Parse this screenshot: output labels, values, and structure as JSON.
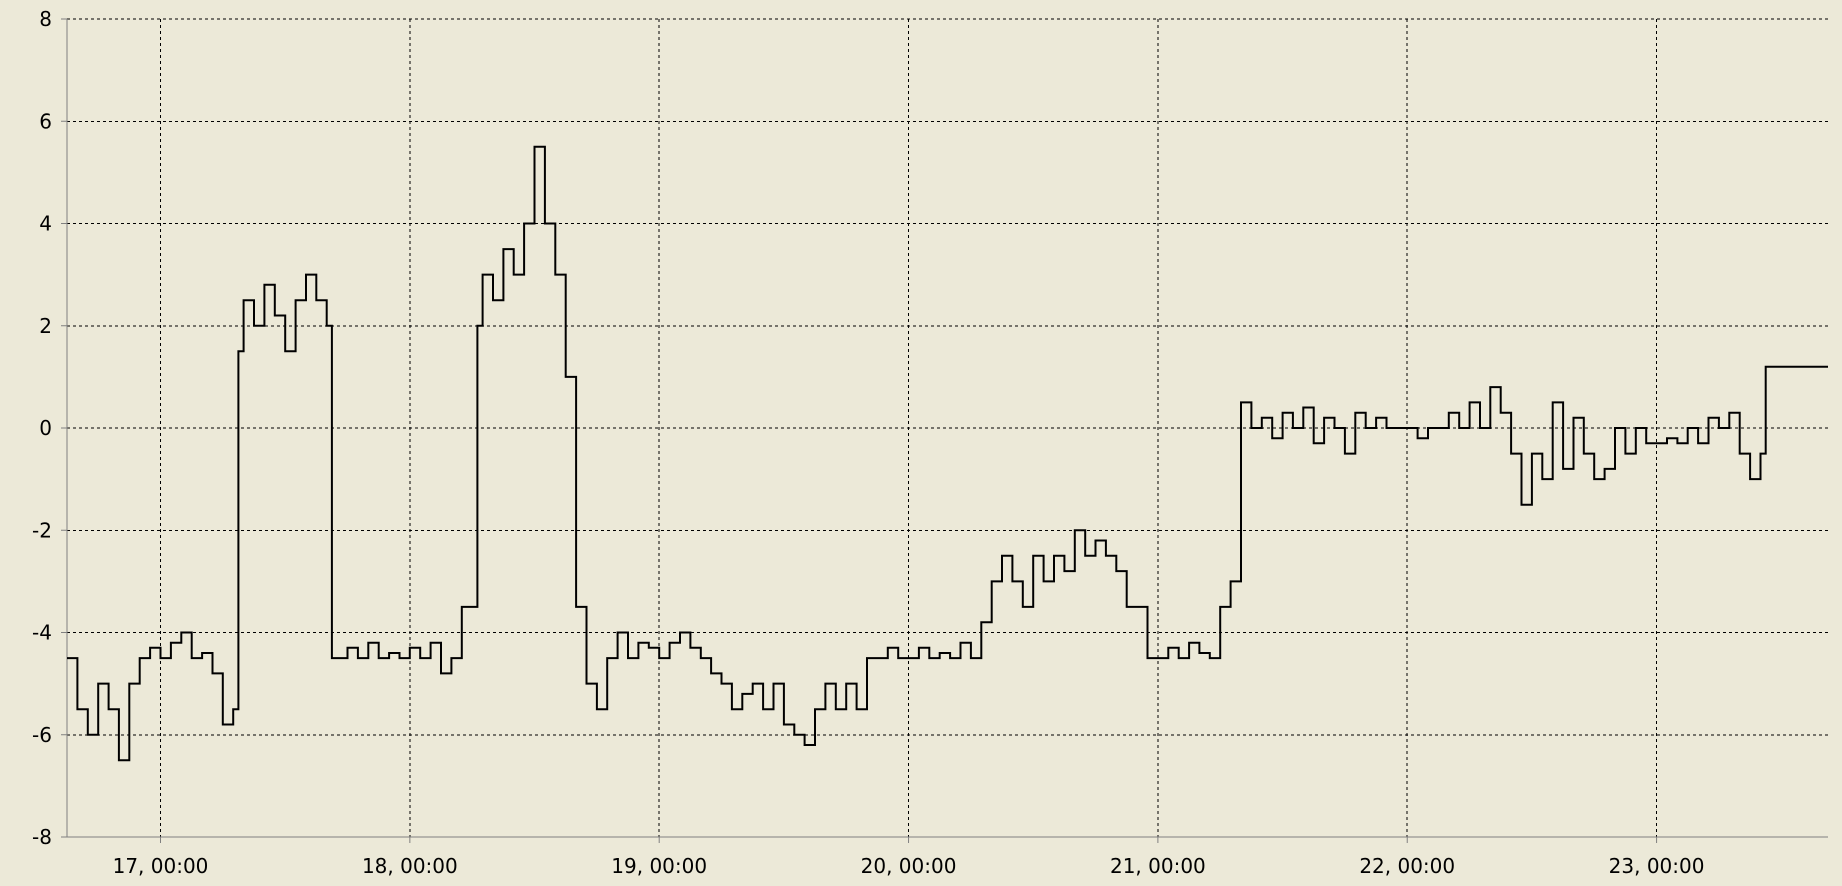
{
  "chart_data": {
    "type": "line",
    "title": "",
    "xlabel": "",
    "ylabel": "",
    "grid": true,
    "legend": "none",
    "colors": {
      "background": "#ece9d8",
      "line": "#000000",
      "grid": "#000000",
      "axis": "#808080"
    },
    "xlim": [
      "16, 15:00",
      "23, 16:30"
    ],
    "ylim": [
      -8,
      8
    ],
    "xticks": [
      "17, 00:00",
      "18, 00:00",
      "19, 00:00",
      "20, 00:00",
      "21, 00:00",
      "22, 00:00",
      "23, 00:00"
    ],
    "yticks": [
      -8,
      -6,
      -4,
      -2,
      0,
      2,
      4,
      6,
      8
    ],
    "series": [
      {
        "points": [
          [
            "16, 15:00",
            -4.5
          ],
          [
            "16, 16:00",
            -5.5
          ],
          [
            "16, 17:00",
            -6.0
          ],
          [
            "16, 18:00",
            -5.0
          ],
          [
            "16, 19:00",
            -5.5
          ],
          [
            "16, 20:00",
            -6.5
          ],
          [
            "16, 21:00",
            -5.0
          ],
          [
            "16, 22:00",
            -4.5
          ],
          [
            "16, 23:00",
            -4.3
          ],
          [
            "17, 00:00",
            -4.5
          ],
          [
            "17, 01:00",
            -4.2
          ],
          [
            "17, 02:00",
            -4.0
          ],
          [
            "17, 03:00",
            -4.5
          ],
          [
            "17, 04:00",
            -4.4
          ],
          [
            "17, 05:00",
            -4.8
          ],
          [
            "17, 06:00",
            -5.8
          ],
          [
            "17, 07:00",
            -5.5
          ],
          [
            "17, 07:30",
            1.5
          ],
          [
            "17, 08:00",
            2.5
          ],
          [
            "17, 09:00",
            2.0
          ],
          [
            "17, 10:00",
            2.8
          ],
          [
            "17, 11:00",
            2.2
          ],
          [
            "17, 12:00",
            1.5
          ],
          [
            "17, 13:00",
            2.5
          ],
          [
            "17, 14:00",
            3.0
          ],
          [
            "17, 15:00",
            2.5
          ],
          [
            "17, 16:00",
            2.0
          ],
          [
            "17, 16:30",
            -4.5
          ],
          [
            "17, 17:00",
            -4.5
          ],
          [
            "17, 18:00",
            -4.3
          ],
          [
            "17, 19:00",
            -4.5
          ],
          [
            "17, 20:00",
            -4.2
          ],
          [
            "17, 21:00",
            -4.5
          ],
          [
            "17, 22:00",
            -4.4
          ],
          [
            "17, 23:00",
            -4.5
          ],
          [
            "18, 00:00",
            -4.3
          ],
          [
            "18, 01:00",
            -4.5
          ],
          [
            "18, 02:00",
            -4.2
          ],
          [
            "18, 03:00",
            -4.8
          ],
          [
            "18, 04:00",
            -4.5
          ],
          [
            "18, 05:00",
            -3.5
          ],
          [
            "18, 06:00",
            -3.5
          ],
          [
            "18, 06:30",
            2.0
          ],
          [
            "18, 07:00",
            3.0
          ],
          [
            "18, 08:00",
            2.5
          ],
          [
            "18, 09:00",
            3.5
          ],
          [
            "18, 10:00",
            3.0
          ],
          [
            "18, 11:00",
            4.0
          ],
          [
            "18, 12:00",
            5.5
          ],
          [
            "18, 13:00",
            4.0
          ],
          [
            "18, 14:00",
            3.0
          ],
          [
            "18, 15:00",
            1.0
          ],
          [
            "18, 16:00",
            -3.5
          ],
          [
            "18, 17:00",
            -5.0
          ],
          [
            "18, 18:00",
            -5.5
          ],
          [
            "18, 19:00",
            -4.5
          ],
          [
            "18, 20:00",
            -4.0
          ],
          [
            "18, 21:00",
            -4.5
          ],
          [
            "18, 22:00",
            -4.2
          ],
          [
            "18, 23:00",
            -4.3
          ],
          [
            "19, 00:00",
            -4.5
          ],
          [
            "19, 01:00",
            -4.2
          ],
          [
            "19, 02:00",
            -4.0
          ],
          [
            "19, 03:00",
            -4.3
          ],
          [
            "19, 04:00",
            -4.5
          ],
          [
            "19, 05:00",
            -4.8
          ],
          [
            "19, 06:00",
            -5.0
          ],
          [
            "19, 07:00",
            -5.5
          ],
          [
            "19, 08:00",
            -5.2
          ],
          [
            "19, 09:00",
            -5.0
          ],
          [
            "19, 10:00",
            -5.5
          ],
          [
            "19, 11:00",
            -5.0
          ],
          [
            "19, 12:00",
            -5.8
          ],
          [
            "19, 13:00",
            -6.0
          ],
          [
            "19, 14:00",
            -6.2
          ],
          [
            "19, 15:00",
            -5.5
          ],
          [
            "19, 16:00",
            -5.0
          ],
          [
            "19, 17:00",
            -5.5
          ],
          [
            "19, 18:00",
            -5.0
          ],
          [
            "19, 19:00",
            -5.5
          ],
          [
            "19, 20:00",
            -4.5
          ],
          [
            "19, 21:00",
            -4.5
          ],
          [
            "19, 22:00",
            -4.3
          ],
          [
            "19, 23:00",
            -4.5
          ],
          [
            "20, 00:00",
            -4.5
          ],
          [
            "20, 01:00",
            -4.3
          ],
          [
            "20, 02:00",
            -4.5
          ],
          [
            "20, 03:00",
            -4.4
          ],
          [
            "20, 04:00",
            -4.5
          ],
          [
            "20, 05:00",
            -4.2
          ],
          [
            "20, 06:00",
            -4.5
          ],
          [
            "20, 07:00",
            -3.8
          ],
          [
            "20, 08:00",
            -3.0
          ],
          [
            "20, 09:00",
            -2.5
          ],
          [
            "20, 10:00",
            -3.0
          ],
          [
            "20, 11:00",
            -3.5
          ],
          [
            "20, 12:00",
            -2.5
          ],
          [
            "20, 13:00",
            -3.0
          ],
          [
            "20, 14:00",
            -2.5
          ],
          [
            "20, 15:00",
            -2.8
          ],
          [
            "20, 16:00",
            -2.0
          ],
          [
            "20, 17:00",
            -2.5
          ],
          [
            "20, 18:00",
            -2.2
          ],
          [
            "20, 19:00",
            -2.5
          ],
          [
            "20, 20:00",
            -2.8
          ],
          [
            "20, 21:00",
            -3.5
          ],
          [
            "20, 22:00",
            -3.5
          ],
          [
            "20, 23:00",
            -4.5
          ],
          [
            "21, 00:00",
            -4.5
          ],
          [
            "21, 01:00",
            -4.3
          ],
          [
            "21, 02:00",
            -4.5
          ],
          [
            "21, 03:00",
            -4.2
          ],
          [
            "21, 04:00",
            -4.4
          ],
          [
            "21, 05:00",
            -4.5
          ],
          [
            "21, 06:00",
            -3.5
          ],
          [
            "21, 07:00",
            -3.0
          ],
          [
            "21, 08:00",
            0.5
          ],
          [
            "21, 09:00",
            0.0
          ],
          [
            "21, 10:00",
            0.2
          ],
          [
            "21, 11:00",
            -0.2
          ],
          [
            "21, 12:00",
            0.3
          ],
          [
            "21, 13:00",
            0.0
          ],
          [
            "21, 14:00",
            0.4
          ],
          [
            "21, 15:00",
            -0.3
          ],
          [
            "21, 16:00",
            0.2
          ],
          [
            "21, 17:00",
            0.0
          ],
          [
            "21, 18:00",
            -0.5
          ],
          [
            "21, 19:00",
            0.3
          ],
          [
            "21, 20:00",
            0.0
          ],
          [
            "21, 21:00",
            0.2
          ],
          [
            "21, 22:00",
            0.0
          ],
          [
            "21, 23:00",
            0.0
          ],
          [
            "22, 00:00",
            0.0
          ],
          [
            "22, 01:00",
            -0.2
          ],
          [
            "22, 02:00",
            0.0
          ],
          [
            "22, 03:00",
            0.0
          ],
          [
            "22, 04:00",
            0.3
          ],
          [
            "22, 05:00",
            0.0
          ],
          [
            "22, 06:00",
            0.5
          ],
          [
            "22, 07:00",
            0.0
          ],
          [
            "22, 08:00",
            0.8
          ],
          [
            "22, 09:00",
            0.3
          ],
          [
            "22, 10:00",
            -0.5
          ],
          [
            "22, 11:00",
            -1.5
          ],
          [
            "22, 12:00",
            -0.5
          ],
          [
            "22, 13:00",
            -1.0
          ],
          [
            "22, 14:00",
            0.5
          ],
          [
            "22, 15:00",
            -0.8
          ],
          [
            "22, 16:00",
            0.2
          ],
          [
            "22, 17:00",
            -0.5
          ],
          [
            "22, 18:00",
            -1.0
          ],
          [
            "22, 19:00",
            -0.8
          ],
          [
            "22, 20:00",
            0.0
          ],
          [
            "22, 21:00",
            -0.5
          ],
          [
            "22, 22:00",
            0.0
          ],
          [
            "22, 23:00",
            -0.3
          ],
          [
            "23, 00:00",
            -0.3
          ],
          [
            "23, 01:00",
            -0.2
          ],
          [
            "23, 02:00",
            -0.3
          ],
          [
            "23, 03:00",
            0.0
          ],
          [
            "23, 04:00",
            -0.3
          ],
          [
            "23, 05:00",
            0.2
          ],
          [
            "23, 06:00",
            0.0
          ],
          [
            "23, 07:00",
            0.3
          ],
          [
            "23, 08:00",
            -0.5
          ],
          [
            "23, 09:00",
            -1.0
          ],
          [
            "23, 10:00",
            -0.5
          ],
          [
            "23, 10:30",
            1.2
          ],
          [
            "23, 16:30",
            1.2
          ]
        ]
      }
    ]
  }
}
